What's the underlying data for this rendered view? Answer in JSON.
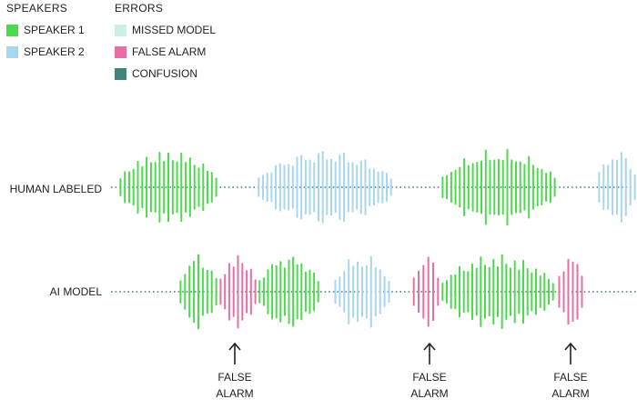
{
  "colors": {
    "speaker_1": "#4cdb4c",
    "speaker_2": "#a8d6ee",
    "missed_model": "#cdeee6",
    "false_alarm": "#e86fa4",
    "confusion": "#44837c",
    "axis": "#4d7a78"
  },
  "legend": {
    "speakers_title": "SPEAKERS",
    "errors_title": "ERRORS",
    "speakers": [
      {
        "label": "SPEAKER 1",
        "color_key": "speaker_1"
      },
      {
        "label": "SPEAKER 2",
        "color_key": "speaker_2"
      }
    ],
    "errors": [
      {
        "label": "MISSED MODEL",
        "color_key": "missed_model"
      },
      {
        "label": "FALSE ALARM",
        "color_key": "false_alarm"
      },
      {
        "label": "CONFUSION",
        "color_key": "confusion"
      }
    ]
  },
  "tracks": [
    {
      "label": "HUMAN LABELED",
      "segments": [
        {
          "type": "speaker_1"
        },
        {
          "type": "speaker_2"
        },
        {
          "type": "speaker_1"
        },
        {
          "type": "speaker_2"
        }
      ]
    },
    {
      "label": "AI MODEL",
      "segments": [
        {
          "type": "speaker_1"
        },
        {
          "type": "false_alarm"
        },
        {
          "type": "speaker_1"
        },
        {
          "type": "speaker_2"
        },
        {
          "type": "false_alarm"
        },
        {
          "type": "speaker_1"
        },
        {
          "type": "false_alarm"
        }
      ]
    }
  ],
  "callouts": [
    {
      "line1": "FALSE",
      "line2": "ALARM"
    },
    {
      "line1": "FALSE",
      "line2": "ALARM"
    },
    {
      "line1": "FALSE",
      "line2": "ALARM"
    }
  ]
}
